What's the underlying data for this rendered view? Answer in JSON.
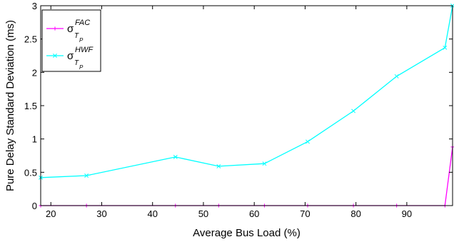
{
  "chart_data": {
    "type": "line",
    "xlabel": "Average Bus Load (%)",
    "ylabel": "Pure Delay Standard Deviation (ms)",
    "xlim": [
      18,
      99
    ],
    "ylim": [
      0,
      3
    ],
    "xticks": [
      20,
      30,
      40,
      50,
      60,
      70,
      80,
      90
    ],
    "yticks": [
      0,
      0.5,
      1,
      1.5,
      2,
      2.5,
      3
    ],
    "xtick_labels": [
      "20",
      "30",
      "40",
      "50",
      "60",
      "70",
      "80",
      "90"
    ],
    "ytick_labels": [
      "0",
      "0.5",
      "1",
      "1.5",
      "2",
      "2.5",
      "3"
    ],
    "grid": false,
    "legend_position": "top-left",
    "series": [
      {
        "name": "σ_{T_P}^{FAC}",
        "legend": {
          "base": "σ",
          "sup": "FAC",
          "sub": "T",
          "subsub": "P"
        },
        "color": "#ff00ff",
        "marker": "plus",
        "x": [
          18,
          27,
          44.5,
          53,
          62,
          70.5,
          79.5,
          88,
          97.5,
          99
        ],
        "y": [
          0,
          0,
          0,
          0,
          0,
          0,
          0,
          0,
          0,
          0.88
        ]
      },
      {
        "name": "σ_{T_P}^{HWF}",
        "legend": {
          "base": "σ",
          "sup": "HWF",
          "sub": "T",
          "subsub": "P"
        },
        "color": "#00ffff",
        "marker": "x",
        "x": [
          18,
          27,
          44.5,
          53,
          62,
          70.5,
          79.5,
          88,
          97.5,
          99
        ],
        "y": [
          0.42,
          0.45,
          0.73,
          0.59,
          0.63,
          0.96,
          1.42,
          1.94,
          2.37,
          3.0
        ]
      }
    ]
  }
}
